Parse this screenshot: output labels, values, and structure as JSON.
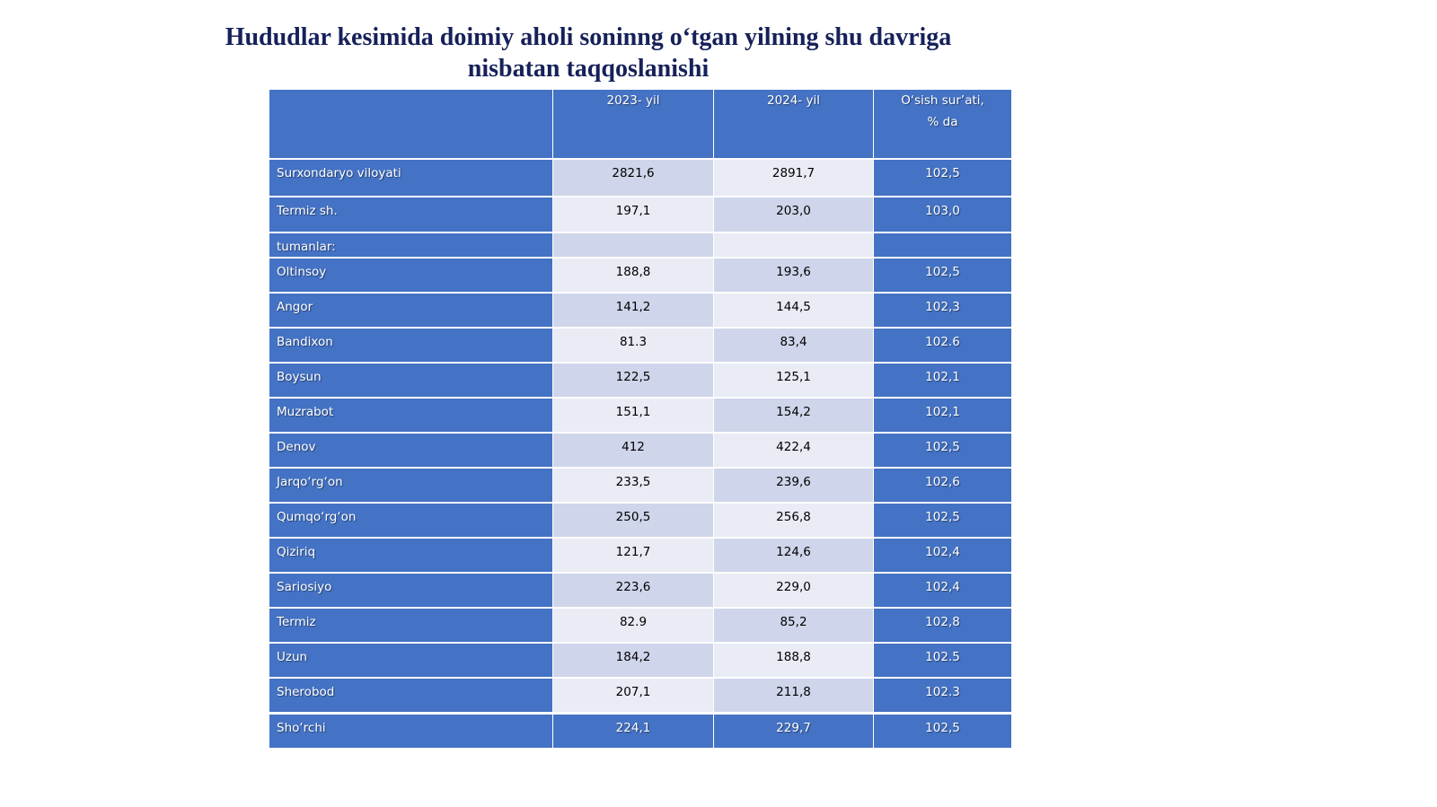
{
  "title": "Hududlar kesimida doimiy aholi soninng o‘tgan yilning shu davriga nisbatan taqqoslanishi",
  "table": {
    "header": [
      "2023- yil",
      "2024- yil",
      "O‘sish sur’ati,\n% da"
    ],
    "rows": [
      {
        "name": "Surxondaryo viloyati",
        "values": [
          "2821,6",
          "2891,7",
          "102,5"
        ]
      },
      {
        "name": "Termiz sh.",
        "values": [
          "197,1",
          "203,0",
          "103,0"
        ]
      },
      {
        "name": "tumanlar:"
      },
      {
        "name": "Oltinsoy",
        "values": [
          "188,8",
          "193,6",
          "102,5"
        ]
      },
      {
        "name": "Angor",
        "values": [
          "141,2",
          "144,5",
          "102,3"
        ]
      },
      {
        "name": "Bandixon",
        "values": [
          "81.3",
          "83,4",
          "102.6"
        ]
      },
      {
        "name": "Boysun",
        "values": [
          "122,5",
          "125,1",
          "102,1"
        ]
      },
      {
        "name": "Muzrabot",
        "values": [
          "151,1",
          "154,2",
          "102,1"
        ]
      },
      {
        "name": "Denov",
        "values": [
          "412",
          "422,4",
          "102,5"
        ]
      },
      {
        "name": "Jarqo‘rg‘on",
        "values": [
          "233,5",
          "239,6",
          "102,6"
        ]
      },
      {
        "name": "Qumqo‘rg‘on",
        "values": [
          "250,5",
          "256,8",
          "102,5"
        ]
      },
      {
        "name": "Qiziriq",
        "values": [
          "121,7",
          "124,6",
          "102,4"
        ]
      },
      {
        "name": "Sariosiyo",
        "values": [
          "223,6",
          "229,0",
          "102,4"
        ]
      },
      {
        "name": "Termiz",
        "values": [
          "82.9",
          "85,2",
          "102,8"
        ]
      },
      {
        "name": "Uzun",
        "values": [
          "184,2",
          "188,8",
          "102.5"
        ]
      },
      {
        "name": "Sherobod",
        "values": [
          "207,1",
          "211,8",
          "102.3"
        ]
      },
      {
        "name": "Sho‘rchi",
        "values": [
          "224,1",
          "229,7",
          "102,5"
        ]
      }
    ]
  }
}
